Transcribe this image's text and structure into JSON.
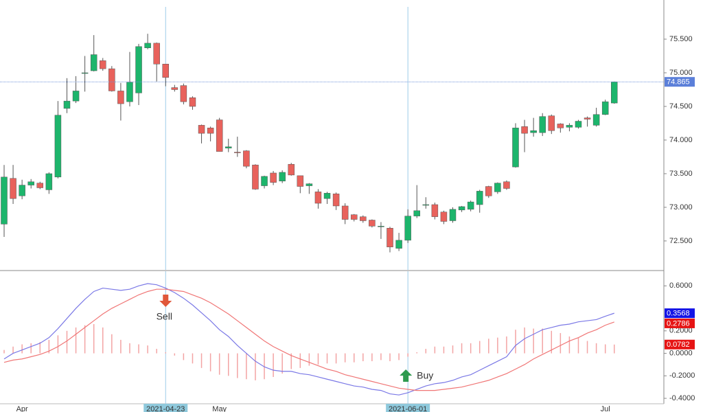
{
  "chart_data": [
    {
      "type": "candlestick",
      "categories": [
        null,
        null,
        "Apr",
        null,
        null,
        null,
        null,
        null,
        null,
        null,
        null,
        null,
        null,
        null,
        null,
        null,
        null,
        null,
        "2021-04-23",
        null,
        null,
        null,
        null,
        null,
        "May",
        null,
        null,
        null,
        null,
        null,
        null,
        null,
        null,
        null,
        null,
        null,
        null,
        null,
        null,
        null,
        null,
        null,
        null,
        null,
        null,
        "2021-06-01",
        null,
        null,
        null,
        null,
        null,
        null,
        null,
        null,
        null,
        null,
        null,
        null,
        null,
        null,
        null,
        null,
        null,
        null,
        null,
        null,
        null,
        "Jul",
        null
      ],
      "open": [
        72.75,
        73.43,
        73.17,
        73.33,
        73.36,
        73.26,
        73.45,
        74.47,
        74.58,
        74.99,
        75.03,
        75.18,
        75.06,
        74.73,
        74.57,
        74.7,
        75.37,
        75.44,
        75.13,
        74.78,
        74.81,
        74.63,
        74.22,
        74.18,
        74.3,
        73.88,
        73.82,
        73.84,
        73.63,
        73.32,
        73.51,
        73.39,
        73.64,
        73.47,
        73.32,
        73.23,
        73.13,
        73.2,
        73.02,
        72.89,
        72.86,
        72.81,
        72.72,
        72.69,
        72.39,
        72.51,
        72.87,
        73.04,
        73.04,
        72.93,
        72.8,
        72.96,
        72.97,
        73.04,
        73.31,
        73.23,
        73.38,
        73.6,
        74.2,
        74.11,
        74.11,
        74.36,
        74.24,
        74.19,
        74.19,
        74.33,
        74.22,
        74.38,
        74.55
      ],
      "high": [
        73.63,
        73.63,
        73.41,
        73.42,
        73.38,
        73.52,
        74.58,
        74.92,
        74.95,
        75.25,
        75.56,
        75.22,
        75.1,
        74.85,
        75.31,
        75.43,
        75.58,
        75.45,
        75.13,
        74.82,
        74.84,
        74.65,
        74.23,
        74.2,
        74.33,
        74.02,
        74.05,
        73.85,
        73.64,
        73.47,
        73.54,
        73.55,
        73.66,
        73.47,
        73.36,
        73.27,
        73.23,
        73.22,
        73.06,
        72.9,
        72.88,
        72.82,
        72.78,
        72.71,
        72.62,
        72.97,
        73.33,
        73.15,
        73.07,
        72.95,
        73.0,
        73.02,
        73.1,
        73.26,
        73.32,
        73.37,
        73.4,
        74.25,
        74.3,
        74.33,
        74.4,
        74.38,
        74.25,
        74.25,
        74.3,
        74.35,
        74.48,
        74.6,
        74.87
      ],
      "low": [
        72.56,
        73.05,
        73.12,
        73.28,
        73.27,
        73.2,
        73.43,
        74.4,
        74.55,
        74.72,
        75.02,
        75.03,
        74.72,
        74.29,
        74.5,
        74.52,
        75.35,
        74.87,
        74.8,
        74.72,
        74.53,
        74.45,
        73.95,
        73.98,
        73.83,
        73.82,
        73.75,
        73.58,
        73.26,
        73.28,
        73.33,
        73.36,
        73.47,
        73.21,
        73.2,
        72.98,
        73.05,
        72.96,
        72.75,
        72.79,
        72.77,
        72.7,
        72.53,
        72.33,
        72.35,
        72.47,
        72.84,
        72.98,
        72.82,
        72.75,
        72.77,
        72.93,
        72.94,
        72.92,
        73.14,
        73.2,
        73.26,
        73.59,
        73.82,
        74.05,
        74.06,
        74.09,
        74.11,
        74.13,
        74.17,
        74.2,
        74.2,
        74.37,
        74.54
      ],
      "close": [
        73.45,
        73.13,
        73.33,
        73.38,
        73.29,
        73.5,
        74.37,
        74.58,
        74.73,
        75.0,
        75.27,
        75.06,
        74.73,
        74.54,
        74.86,
        75.39,
        75.44,
        75.13,
        74.93,
        74.75,
        74.57,
        74.5,
        74.1,
        74.1,
        73.83,
        73.9,
        73.81,
        73.61,
        73.27,
        73.46,
        73.37,
        73.52,
        73.48,
        73.31,
        73.35,
        73.06,
        73.21,
        73.02,
        72.82,
        72.82,
        72.8,
        72.72,
        72.72,
        72.41,
        72.51,
        72.87,
        72.95,
        73.04,
        72.86,
        72.79,
        72.97,
        73.01,
        73.08,
        73.24,
        73.17,
        73.36,
        73.28,
        74.18,
        74.1,
        74.14,
        74.35,
        74.14,
        74.18,
        74.22,
        74.28,
        74.31,
        74.38,
        74.57,
        74.865
      ],
      "up_color": "#1db56c",
      "down_color": "#e8625c",
      "ylim": [
        72.07,
        75.98
      ],
      "yticks": [
        {
          "value": 75.5,
          "label": "75.500"
        },
        {
          "value": 75.0,
          "label": "75.000"
        },
        {
          "value": 74.5,
          "label": "74.500"
        },
        {
          "value": 74.0,
          "label": "74.000"
        },
        {
          "value": 73.5,
          "label": "73.500"
        },
        {
          "value": 73.0,
          "label": "73.000"
        },
        {
          "value": 72.5,
          "label": "72.500"
        }
      ]
    },
    {
      "type": "line",
      "series": [
        {
          "color": "#7a78e6",
          "badge_color": "#1414e6",
          "values": [
            -0.05,
            0.0,
            0.03,
            0.06,
            0.09,
            0.14,
            0.22,
            0.31,
            0.4,
            0.48,
            0.55,
            0.58,
            0.57,
            0.56,
            0.57,
            0.6,
            0.62,
            0.61,
            0.58,
            0.54,
            0.49,
            0.43,
            0.36,
            0.29,
            0.21,
            0.15,
            0.07,
            0.0,
            -0.07,
            -0.12,
            -0.15,
            -0.16,
            -0.16,
            -0.18,
            -0.19,
            -0.21,
            -0.23,
            -0.25,
            -0.27,
            -0.29,
            -0.3,
            -0.32,
            -0.33,
            -0.36,
            -0.37,
            -0.35,
            -0.32,
            -0.29,
            -0.27,
            -0.26,
            -0.24,
            -0.21,
            -0.19,
            -0.15,
            -0.11,
            -0.07,
            -0.03,
            0.07,
            0.13,
            0.17,
            0.21,
            0.23,
            0.25,
            0.26,
            0.28,
            0.29,
            0.3,
            0.33,
            0.3568
          ]
        },
        {
          "color": "#f07575",
          "badge_color": "#e61414",
          "values": [
            -0.08,
            -0.06,
            -0.05,
            -0.03,
            -0.01,
            0.02,
            0.06,
            0.11,
            0.17,
            0.23,
            0.29,
            0.35,
            0.4,
            0.44,
            0.48,
            0.52,
            0.55,
            0.57,
            0.57,
            0.56,
            0.55,
            0.52,
            0.49,
            0.45,
            0.4,
            0.35,
            0.29,
            0.23,
            0.17,
            0.11,
            0.06,
            0.02,
            -0.02,
            -0.05,
            -0.08,
            -0.11,
            -0.14,
            -0.16,
            -0.19,
            -0.21,
            -0.23,
            -0.25,
            -0.27,
            -0.29,
            -0.31,
            -0.32,
            -0.33,
            -0.33,
            -0.33,
            -0.32,
            -0.31,
            -0.3,
            -0.28,
            -0.26,
            -0.24,
            -0.21,
            -0.18,
            -0.14,
            -0.1,
            -0.05,
            -0.01,
            0.03,
            0.07,
            0.11,
            0.14,
            0.18,
            0.21,
            0.25,
            0.2786
          ]
        }
      ],
      "bars": {
        "color": "#f3a3a3",
        "badge_color": "#e61414",
        "values": [
          0.03,
          0.06,
          0.08,
          0.09,
          0.1,
          0.12,
          0.16,
          0.2,
          0.23,
          0.25,
          0.26,
          0.23,
          0.17,
          0.12,
          0.09,
          0.08,
          0.07,
          0.04,
          0.01,
          -0.02,
          -0.06,
          -0.09,
          -0.13,
          -0.16,
          -0.19,
          -0.2,
          -0.22,
          -0.23,
          -0.24,
          -0.23,
          -0.21,
          -0.18,
          -0.14,
          -0.13,
          -0.11,
          -0.1,
          -0.09,
          -0.09,
          -0.08,
          -0.08,
          -0.07,
          -0.07,
          -0.06,
          -0.07,
          -0.06,
          -0.03,
          0.01,
          0.04,
          0.06,
          0.06,
          0.07,
          0.09,
          0.09,
          0.11,
          0.13,
          0.14,
          0.15,
          0.21,
          0.23,
          0.22,
          0.22,
          0.2,
          0.18,
          0.15,
          0.14,
          0.11,
          0.09,
          0.08,
          0.0782
        ]
      },
      "annotations": [
        {
          "text": "Sell",
          "color": "#e0573a"
        },
        {
          "text": "Buy",
          "color": "#2e9a4e"
        }
      ],
      "ylim": [
        -0.43,
        0.73
      ],
      "yticks": [
        {
          "value": 0.6,
          "label": "0.6000"
        },
        {
          "value": 0.2,
          "label": "0.2000"
        },
        {
          "value": 0,
          "label": "0.0000"
        },
        {
          "value": -0.2,
          "label": "-0.2000"
        },
        {
          "value": -0.4,
          "label": "-0.4000"
        }
      ]
    }
  ]
}
